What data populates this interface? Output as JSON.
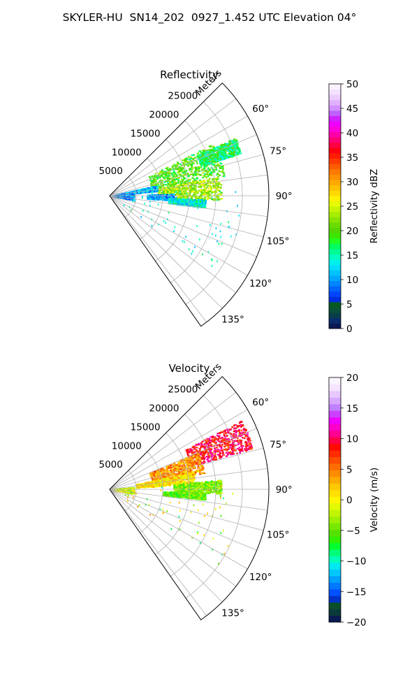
{
  "figure": {
    "suptitle": "SKYLER-HU  SN14_202  0927_1.452 UTC Elevation 04°"
  },
  "chart_data": [
    {
      "type": "heatmap",
      "title": "Reflectivity",
      "radial_label": "Meters",
      "radial_ticks": [
        5000,
        10000,
        15000,
        20000,
        25000
      ],
      "radial_tick_labels": [
        "5000",
        "10000",
        "15000",
        "20000",
        "25000"
      ],
      "rlim": [
        0,
        30000
      ],
      "angle_range_deg": [
        45,
        145
      ],
      "angle_ticks": [
        60,
        75,
        90,
        105,
        120,
        135
      ],
      "angle_tick_labels": [
        "60°",
        "75°",
        "90°",
        "105°",
        "120°",
        "135°"
      ],
      "grid": true,
      "colorbar": {
        "label": "Reflectivity dBZ",
        "range": [
          0,
          50
        ],
        "ticks": [
          0,
          5,
          10,
          15,
          20,
          25,
          30,
          35,
          40,
          45,
          50
        ],
        "tick_labels": [
          "0",
          "5",
          "10",
          "15",
          "20",
          "25",
          "30",
          "35",
          "40",
          "45",
          "50"
        ]
      },
      "echo_regions": [
        {
          "az": [
            63,
            80
          ],
          "range": [
            8000,
            22000
          ],
          "value": 20
        },
        {
          "az": [
            80,
            92
          ],
          "range": [
            9000,
            21000
          ],
          "value": 23
        },
        {
          "az": [
            88,
            94
          ],
          "range": [
            7000,
            12000
          ],
          "value": 10
        },
        {
          "az": [
            77,
            84
          ],
          "range": [
            1000,
            9000
          ],
          "value": 11
        },
        {
          "az": [
            84,
            100
          ],
          "range": [
            300,
            4500
          ],
          "value": 9
        },
        {
          "az": [
            92,
            97
          ],
          "range": [
            11000,
            18000
          ],
          "value": 14
        },
        {
          "az": [
            65,
            72
          ],
          "range": [
            18000,
            26000
          ],
          "value": 17
        }
      ]
    },
    {
      "type": "heatmap",
      "title": "Velocity",
      "radial_label": "Meters",
      "radial_ticks": [
        5000,
        10000,
        15000,
        20000,
        25000
      ],
      "radial_tick_labels": [
        "5000",
        "10000",
        "15000",
        "20000",
        "25000"
      ],
      "rlim": [
        0,
        30000
      ],
      "angle_range_deg": [
        45,
        145
      ],
      "angle_ticks": [
        60,
        75,
        90,
        105,
        120,
        135
      ],
      "angle_tick_labels": [
        "60°",
        "75°",
        "90°",
        "105°",
        "120°",
        "135°"
      ],
      "grid": true,
      "colorbar": {
        "label": "Velocity (m/s)",
        "range": [
          -20,
          20
        ],
        "ticks": [
          -20,
          -15,
          -10,
          -5,
          0,
          5,
          10,
          15,
          20
        ],
        "tick_labels": [
          "−20",
          "−15",
          "−10",
          "−5",
          "0",
          "5",
          "10",
          "15",
          "20"
        ]
      },
      "echo_regions": [
        {
          "az": [
            62,
            74
          ],
          "range": [
            16000,
            28000
          ],
          "value": 9
        },
        {
          "az": [
            67,
            80
          ],
          "range": [
            8000,
            18000
          ],
          "value": 4
        },
        {
          "az": [
            78,
            86
          ],
          "range": [
            5000,
            16000
          ],
          "value": 1
        },
        {
          "az": [
            85,
            92
          ],
          "range": [
            12000,
            21000
          ],
          "value": -4
        },
        {
          "az": [
            92,
            96
          ],
          "range": [
            10000,
            18000
          ],
          "value": -5
        },
        {
          "az": [
            84,
            100
          ],
          "range": [
            300,
            4500
          ],
          "value": -2
        }
      ]
    }
  ]
}
